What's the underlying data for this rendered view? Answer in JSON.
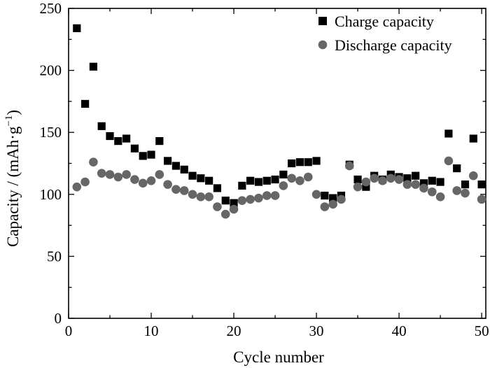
{
  "chart_data": {
    "type": "scatter",
    "xlabel": "Cycle number",
    "ylabel_main": "Capacity / (mAh·g",
    "ylabel_sup": "−1",
    "ylabel_close": ")",
    "xlim": [
      0,
      50.5
    ],
    "ylim": [
      0,
      250
    ],
    "xticks": [
      0,
      10,
      20,
      30,
      40,
      50
    ],
    "yticks": [
      0,
      50,
      100,
      150,
      200,
      250
    ],
    "legend_position": "top-right",
    "series": [
      {
        "name": "Charge capacity",
        "marker": "square",
        "color": "#000000",
        "x": [
          1,
          2,
          3,
          4,
          5,
          6,
          7,
          8,
          9,
          10,
          11,
          12,
          13,
          14,
          15,
          16,
          17,
          18,
          19,
          20,
          21,
          22,
          23,
          24,
          25,
          26,
          27,
          28,
          29,
          30,
          31,
          32,
          33,
          34,
          35,
          36,
          37,
          38,
          39,
          40,
          41,
          42,
          43,
          44,
          45,
          46,
          47,
          48,
          49,
          50
        ],
        "y": [
          234,
          173,
          203,
          155,
          147,
          143,
          145,
          137,
          131,
          132,
          143,
          127,
          123,
          120,
          115,
          113,
          111,
          105,
          95,
          93,
          107,
          111,
          110,
          111,
          112,
          116,
          125,
          126,
          126,
          127,
          99,
          97,
          99,
          124,
          112,
          106,
          115,
          112,
          116,
          114,
          113,
          115,
          109,
          111,
          110,
          149,
          121,
          108,
          145,
          108
        ]
      },
      {
        "name": "Discharge capacity",
        "marker": "circle",
        "color": "#666666",
        "x": [
          1,
          2,
          3,
          4,
          5,
          6,
          7,
          8,
          9,
          10,
          11,
          12,
          13,
          14,
          15,
          16,
          17,
          18,
          19,
          20,
          21,
          22,
          23,
          24,
          25,
          26,
          27,
          28,
          29,
          30,
          31,
          32,
          33,
          34,
          35,
          36,
          37,
          38,
          39,
          40,
          41,
          42,
          43,
          44,
          45,
          46,
          47,
          48,
          49,
          50
        ],
        "y": [
          106,
          110,
          126,
          117,
          116,
          114,
          116,
          112,
          109,
          111,
          116,
          108,
          104,
          103,
          100,
          98,
          98,
          90,
          84,
          88,
          95,
          96,
          97,
          99,
          99,
          107,
          113,
          111,
          114,
          100,
          90,
          92,
          96,
          123,
          106,
          110,
          113,
          111,
          113,
          112,
          108,
          108,
          105,
          102,
          98,
          127,
          103,
          101,
          115,
          96
        ]
      }
    ]
  }
}
